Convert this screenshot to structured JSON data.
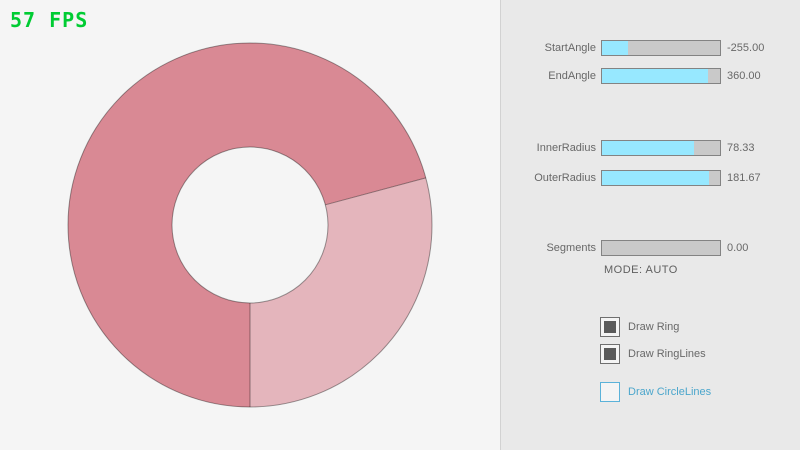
{
  "fps": {
    "text": "57 FPS",
    "color": "#00cc33"
  },
  "ring": {
    "start_angle": -255.0,
    "end_angle": 360.0,
    "inner_radius": 78.33,
    "outer_radius": 181.67,
    "segments": 0.0,
    "color_single_pass": "#e4b5bc",
    "color_double_pass": "#d98994",
    "outline_color": "rgba(0,0,0,0.38)"
  },
  "panel": {
    "sliders": [
      {
        "label": "StartAngle",
        "value": "-255.00",
        "fill_pct": 21.7
      },
      {
        "label": "EndAngle",
        "value": "360.00",
        "fill_pct": 90.0
      },
      {
        "label": "InnerRadius",
        "value": "78.33",
        "fill_pct": 78.3
      },
      {
        "label": "OuterRadius",
        "value": "181.67",
        "fill_pct": 90.8
      },
      {
        "label": "Segments",
        "value": "0.00",
        "fill_pct": 0
      }
    ],
    "mode_text": "MODE: AUTO",
    "checkboxes": [
      {
        "label": "Draw Ring",
        "checked": true
      },
      {
        "label": "Draw RingLines",
        "checked": true
      },
      {
        "label": "Draw CircleLines",
        "checked": false
      }
    ],
    "accent_color": "#97e8ff",
    "focus_color": "#5bb2d9"
  }
}
